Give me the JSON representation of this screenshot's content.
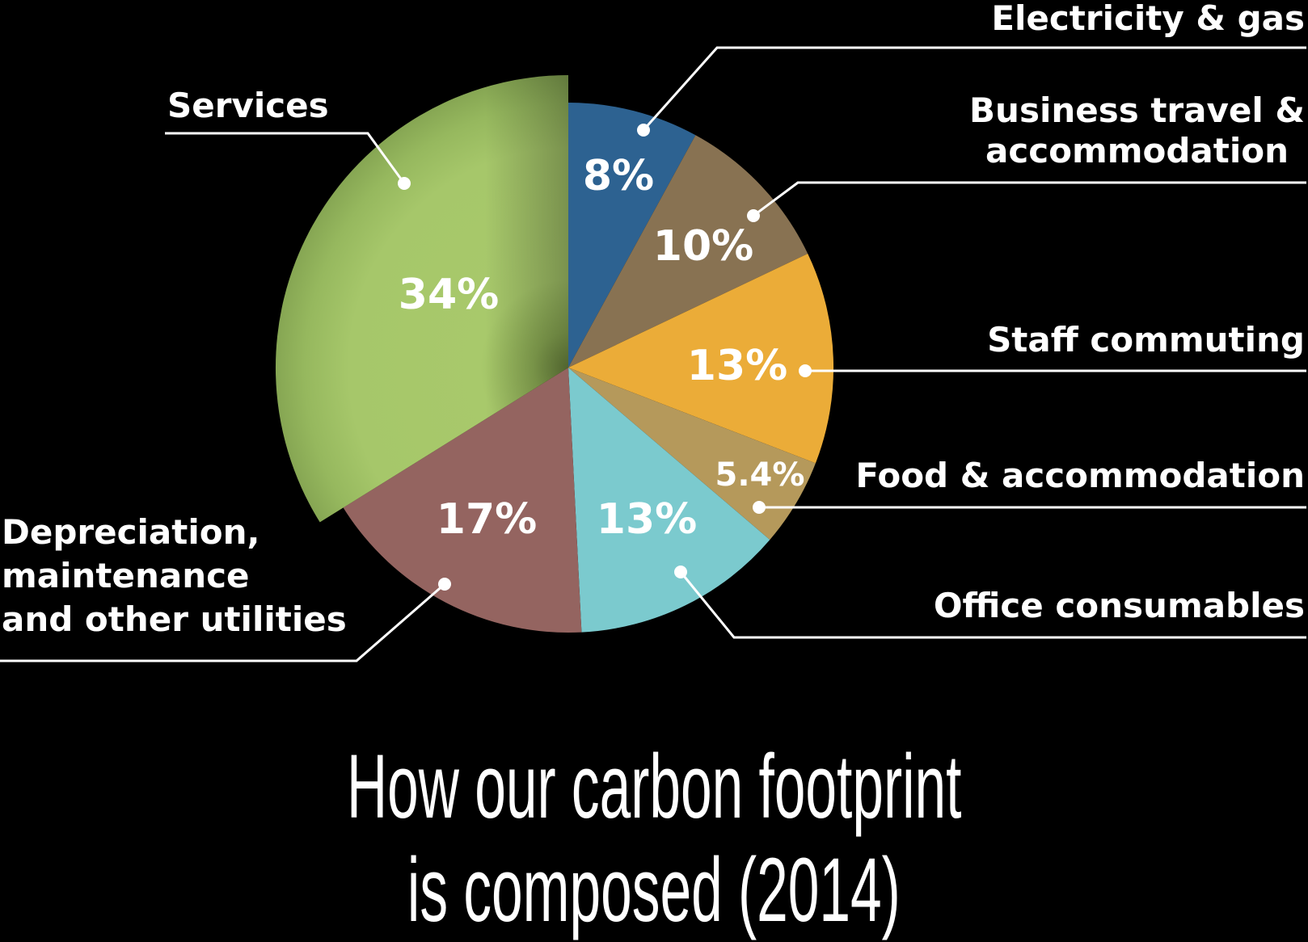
{
  "chart_data": {
    "type": "pie",
    "title": "How our carbon footprint is composed (2014)",
    "title_lines": [
      "How our carbon footprint",
      "is composed (2014)"
    ],
    "start_angle": "12 o'clock, clockwise",
    "exploded": "Services",
    "categories": [
      "Electricity & gas",
      "Business travel & accommodation",
      "Staff commuting",
      "Food & accommodation",
      "Office consumables",
      "Depreciation, maintenance and other utilities",
      "Services"
    ],
    "values": [
      8,
      10,
      13,
      5.4,
      13,
      17,
      34
    ],
    "value_labels": [
      "8%",
      "10%",
      "13%",
      "5.4%",
      "13%",
      "17%",
      "34%"
    ],
    "colors": [
      "#2D6291",
      "#887252",
      "#EBAC38",
      "#B5995B",
      "#7BCACE",
      "#946460",
      "#A8C96B"
    ],
    "label_lines": {
      "electricity": [
        "Electricity & gas"
      ],
      "business": [
        "Business travel &",
        "accommodation"
      ],
      "staff": [
        "Staff commuting"
      ],
      "food": [
        "Food & accommodation"
      ],
      "office": [
        "Office consumables"
      ],
      "depreciation": [
        "Depreciation,",
        "maintenance",
        "and other utilities"
      ],
      "services": [
        "Services"
      ]
    }
  }
}
